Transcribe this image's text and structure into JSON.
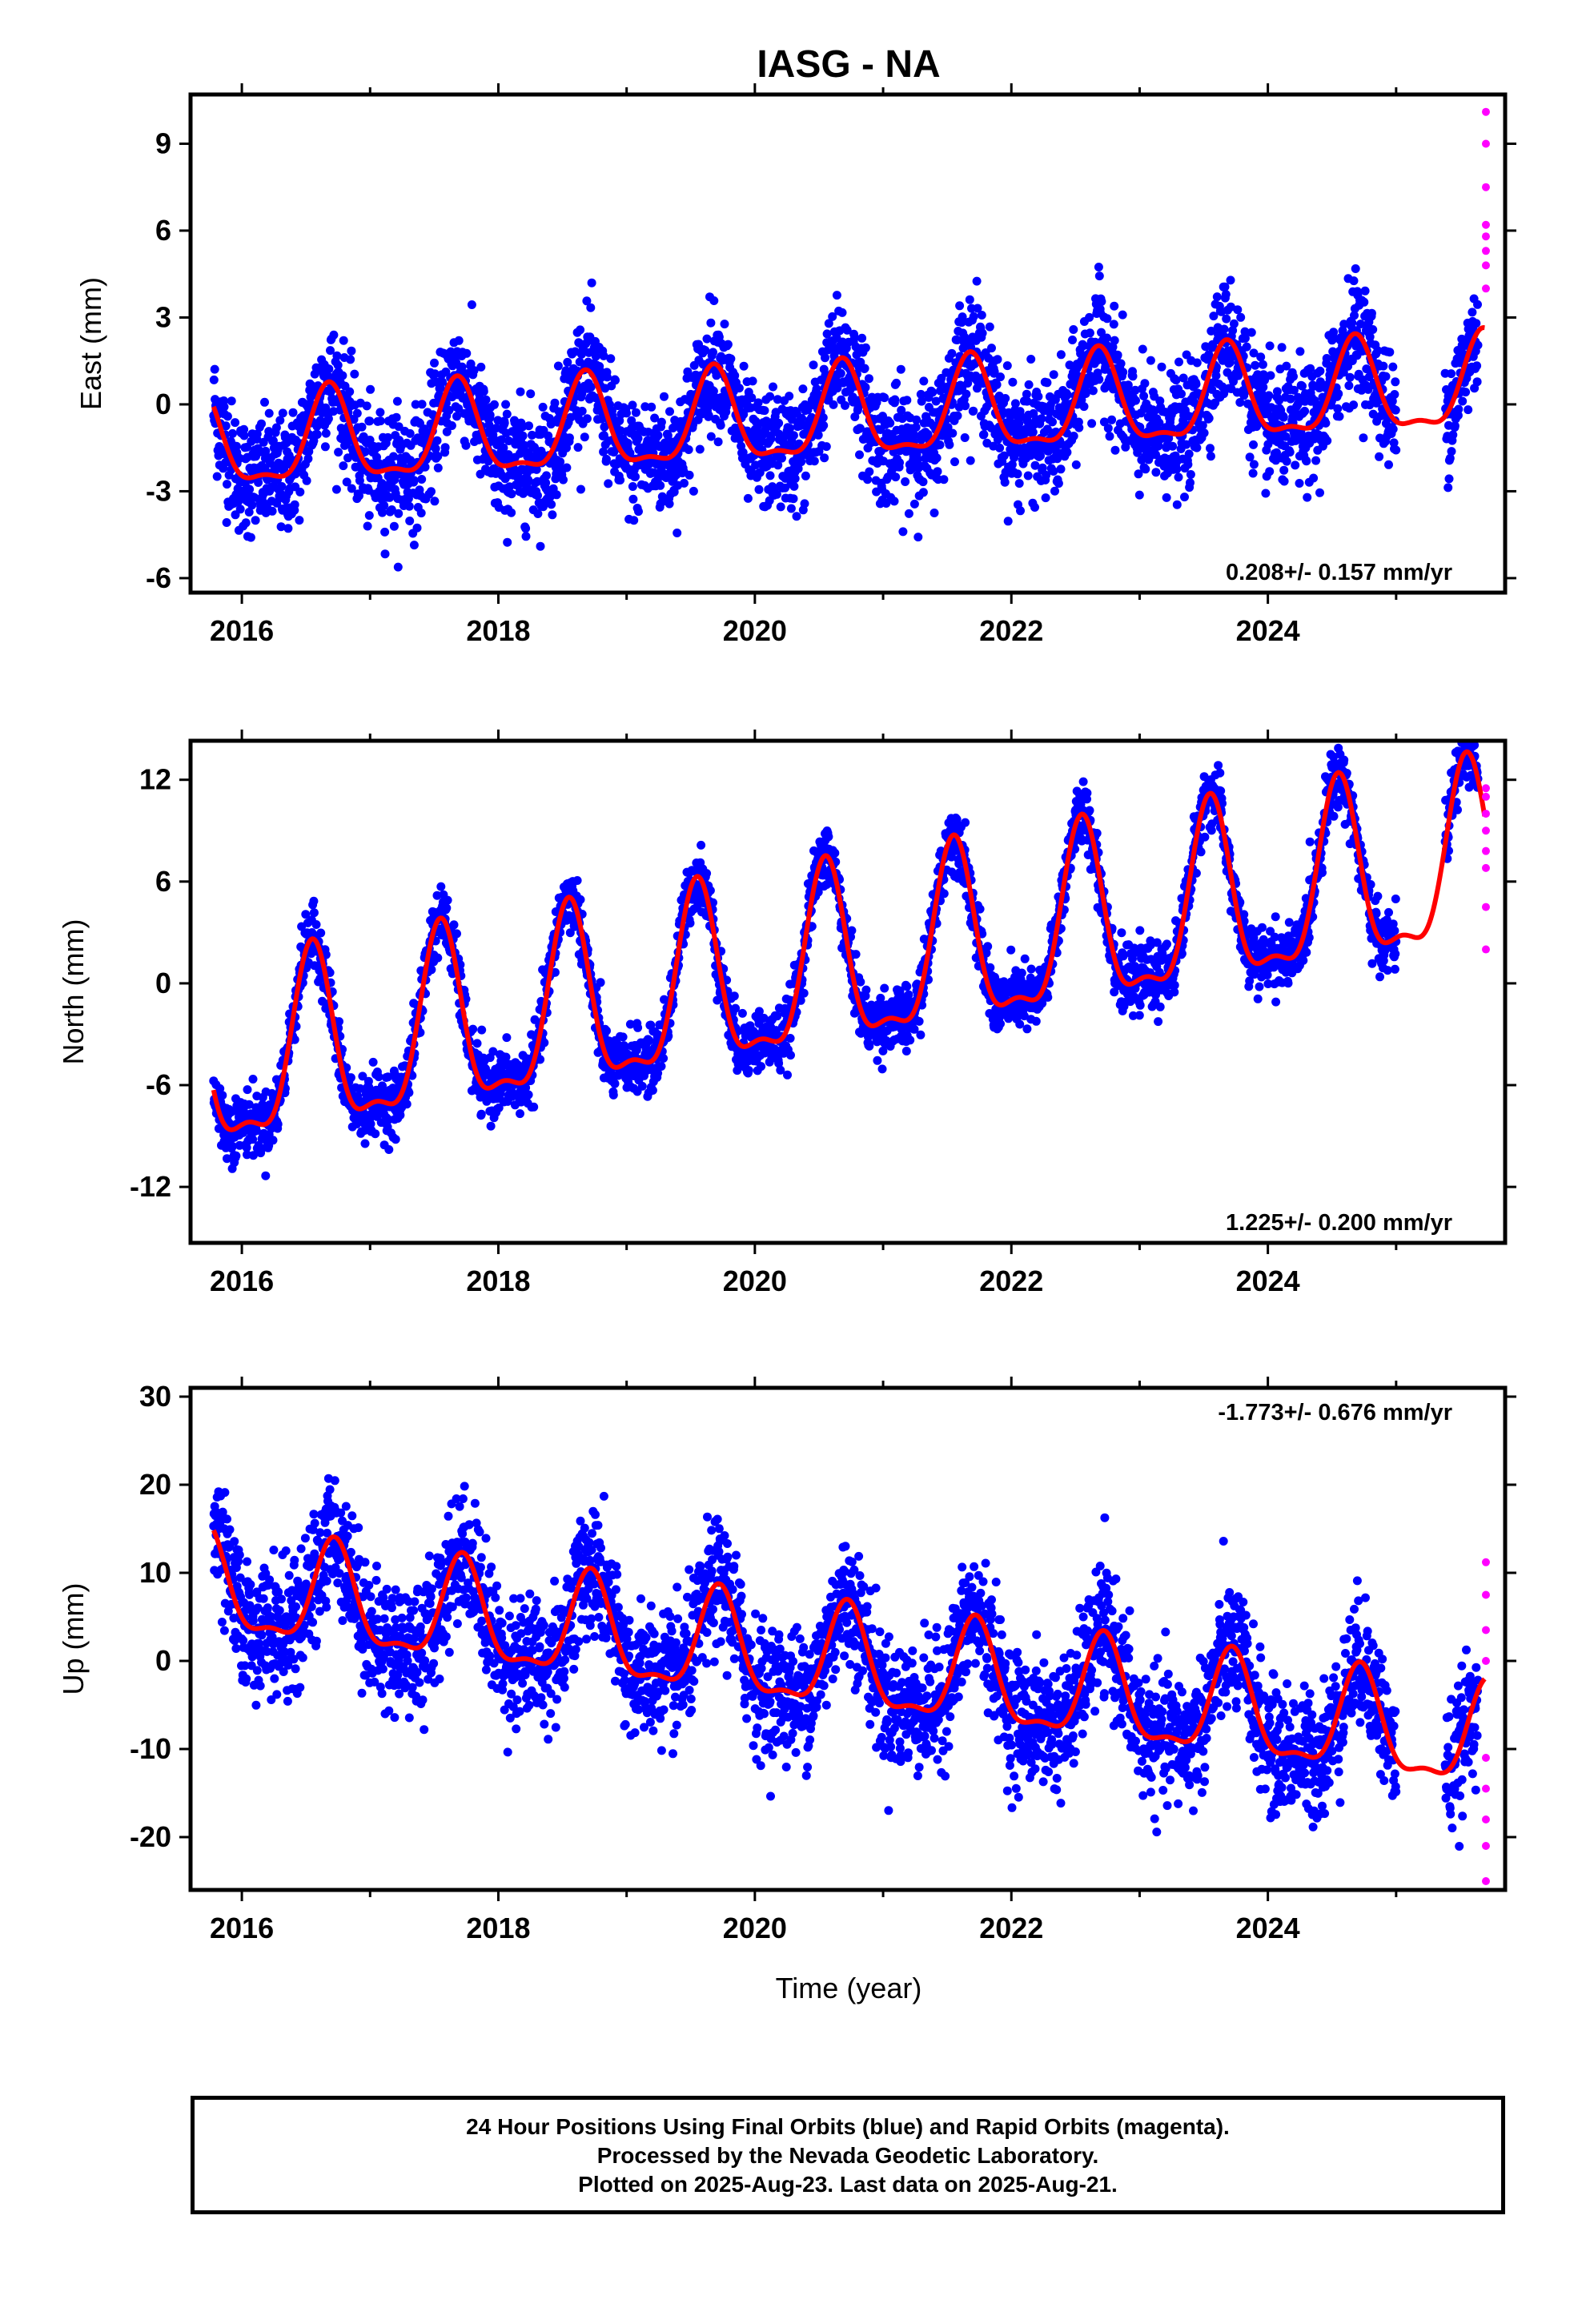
{
  "chart_data": {
    "title": "IASG - NA",
    "xlabel": "Time (year)",
    "xlim": [
      2015.6,
      2025.85
    ],
    "x_ticks": [
      2016,
      2018,
      2020,
      2022,
      2024
    ],
    "x_tick_labels": [
      "2016",
      "2018",
      "2020",
      "2022",
      "2024"
    ],
    "data_start": 2015.78,
    "data_end": 2025.64,
    "colors": {
      "final": "#0000ff",
      "rapid": "#ff00ff",
      "model": "#ff0000"
    },
    "panels": [
      {
        "id": "east",
        "type": "scatter",
        "ylabel": "East (mm)",
        "ylim": [
          -6.5,
          10.7
        ],
        "y_ticks": [
          -6,
          -3,
          0,
          3,
          6,
          9
        ],
        "y_tick_labels": [
          "-6",
          "-3",
          "0",
          "3",
          "6",
          "9"
        ],
        "rate_label": "0.208+/- 0.157 mm/yr",
        "rate_position": "bottom-right",
        "model": {
          "offset": -1.5,
          "rate": 0.208,
          "amplitude": 1.55,
          "peak_phase": 0.68,
          "noise": 1.0
        },
        "rapid_points": [
          4.0,
          4.8,
          5.3,
          5.8,
          6.2,
          7.5,
          9.0,
          10.1
        ]
      },
      {
        "id": "north",
        "type": "scatter",
        "ylabel": "North (mm)",
        "ylim": [
          -15.3,
          14.3
        ],
        "y_ticks": [
          -12,
          -6,
          0,
          6,
          12
        ],
        "y_tick_labels": [
          "-12",
          "-6",
          "0",
          "6",
          "12"
        ],
        "rate_label": "1.225+/- 0.200 mm/yr",
        "rate_position": "bottom-right",
        "model": {
          "offset": -5.2,
          "rate": 1.225,
          "amplitude": 5.1,
          "peak_phase": 0.55,
          "noise": 0.9
        },
        "rapid_points": [
          2.0,
          4.5,
          6.8,
          7.8,
          9.0,
          10.0,
          11.0,
          11.5
        ]
      },
      {
        "id": "up",
        "type": "scatter",
        "ylabel": "Up (mm)",
        "ylim": [
          -26,
          31
        ],
        "y_ticks": [
          -20,
          -10,
          0,
          10,
          20,
          30
        ],
        "y_tick_labels": [
          "-20",
          "-10",
          "0",
          "10",
          "20",
          "30"
        ],
        "rate_label": "-1.773+/- 0.676 mm/yr",
        "rate_position": "top-right",
        "model": {
          "offset": 8.2,
          "rate": -1.773,
          "amplitude": 5.6,
          "peak_phase": 0.72,
          "noise": 3.6
        },
        "rapid_points": [
          -25.0,
          -21.0,
          -18.0,
          -14.5,
          -11.0,
          0.0,
          3.5,
          7.5,
          11.2
        ]
      }
    ]
  },
  "footer": {
    "line1": "24 Hour Positions Using Final Orbits (blue) and Rapid Orbits (magenta).",
    "line2": "Processed by the Nevada Geodetic Laboratory.",
    "line3": "Plotted on 2025-Aug-23. Last data on 2025-Aug-21."
  }
}
